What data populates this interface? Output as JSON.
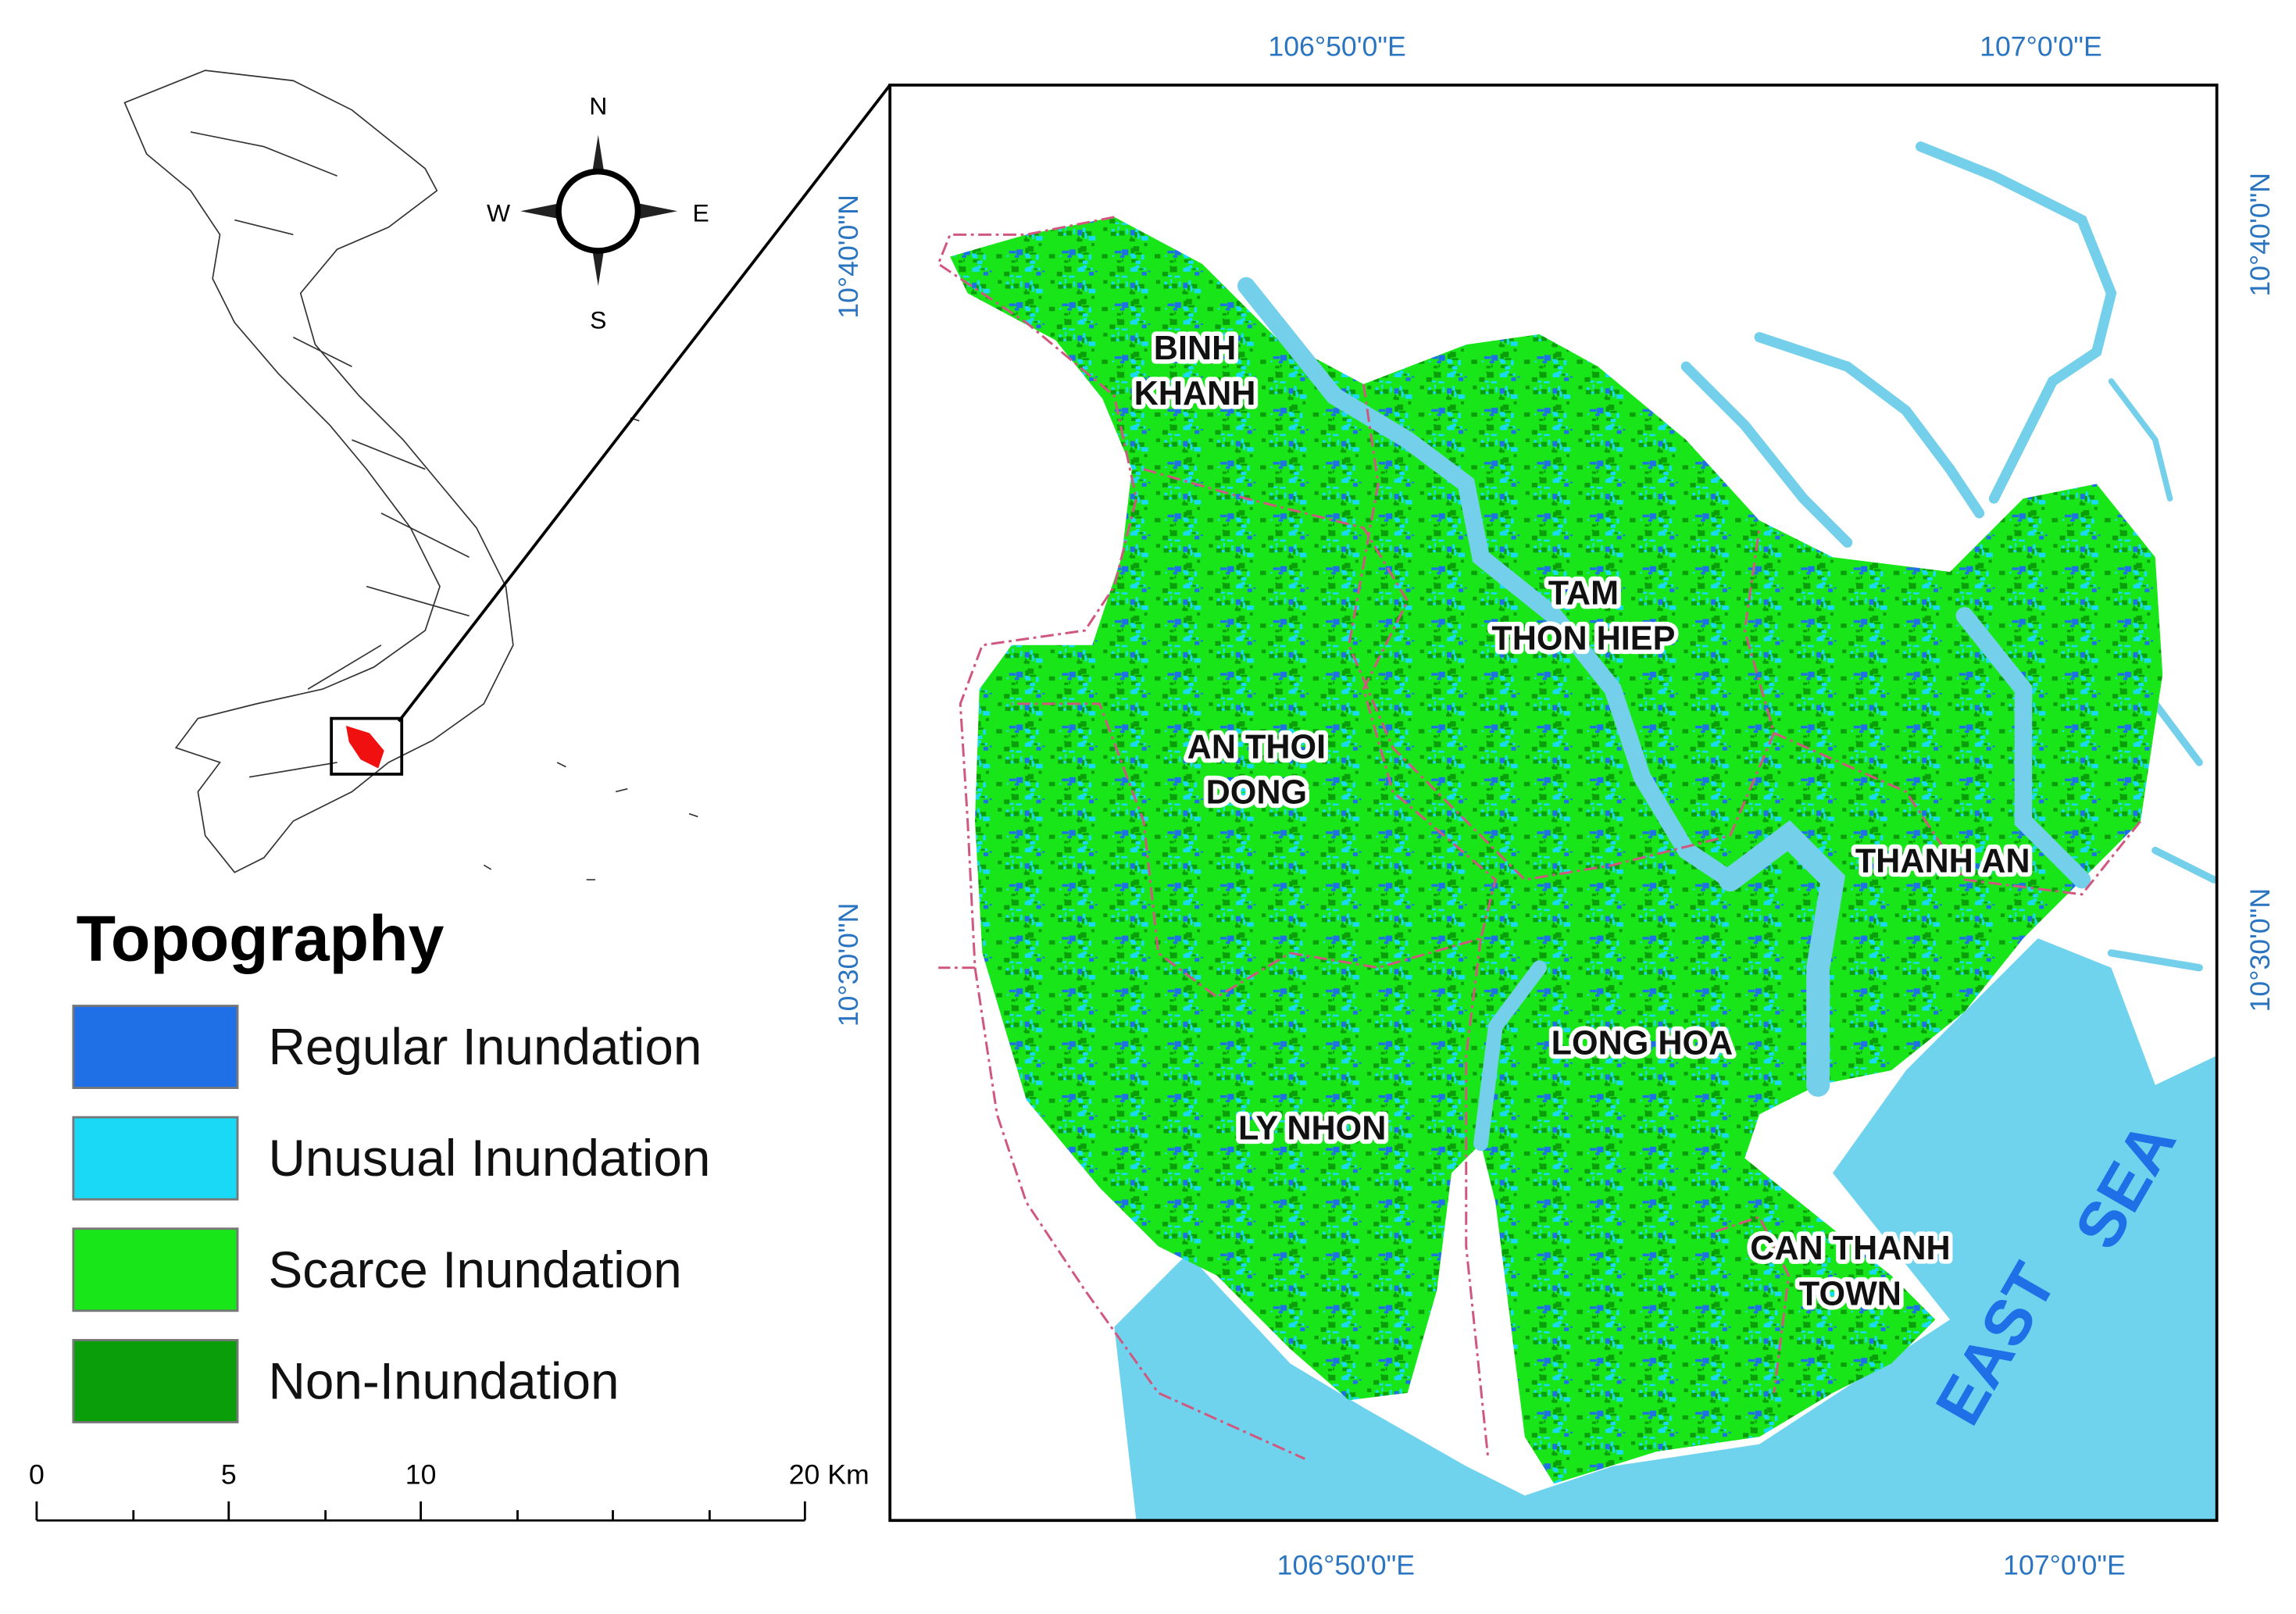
{
  "legend": {
    "title": "Topography",
    "items": [
      {
        "label": "Regular Inundation",
        "color": "#1f6fe6"
      },
      {
        "label": "Unusual Inundation",
        "color": "#1ad9f7"
      },
      {
        "label": "Scarce Inundation",
        "color": "#19e619"
      },
      {
        "label": "Non-Inundation",
        "color": "#0a9e0a"
      }
    ]
  },
  "scale_bar": {
    "labels": [
      "0",
      "5",
      "10",
      "20 Km"
    ]
  },
  "compass": {
    "n": "N",
    "s": "S",
    "w": "W",
    "e": "E"
  },
  "coordinates": {
    "top": [
      "106°50'0\"E",
      "107°0'0\"E"
    ],
    "bottom": [
      "106°50'0\"E",
      "107°0'0\"E"
    ],
    "left": [
      "10°40'0\"N",
      "10°30'0\"N"
    ],
    "right": [
      "10°40'0\"N",
      "10°30'0\"N"
    ]
  },
  "places": [
    {
      "lines": [
        "BINH",
        "KHANH"
      ]
    },
    {
      "lines": [
        "TAM",
        "THON HIEP"
      ]
    },
    {
      "lines": [
        "AN THOI",
        "DONG"
      ]
    },
    {
      "lines": [
        "THANH AN"
      ]
    },
    {
      "lines": [
        "LONG HOA"
      ]
    },
    {
      "lines": [
        "LY NHON"
      ]
    },
    {
      "lines": [
        "CAN THANH",
        "TOWN"
      ]
    }
  ],
  "sea_label": [
    "EAST",
    "SEA"
  ]
}
